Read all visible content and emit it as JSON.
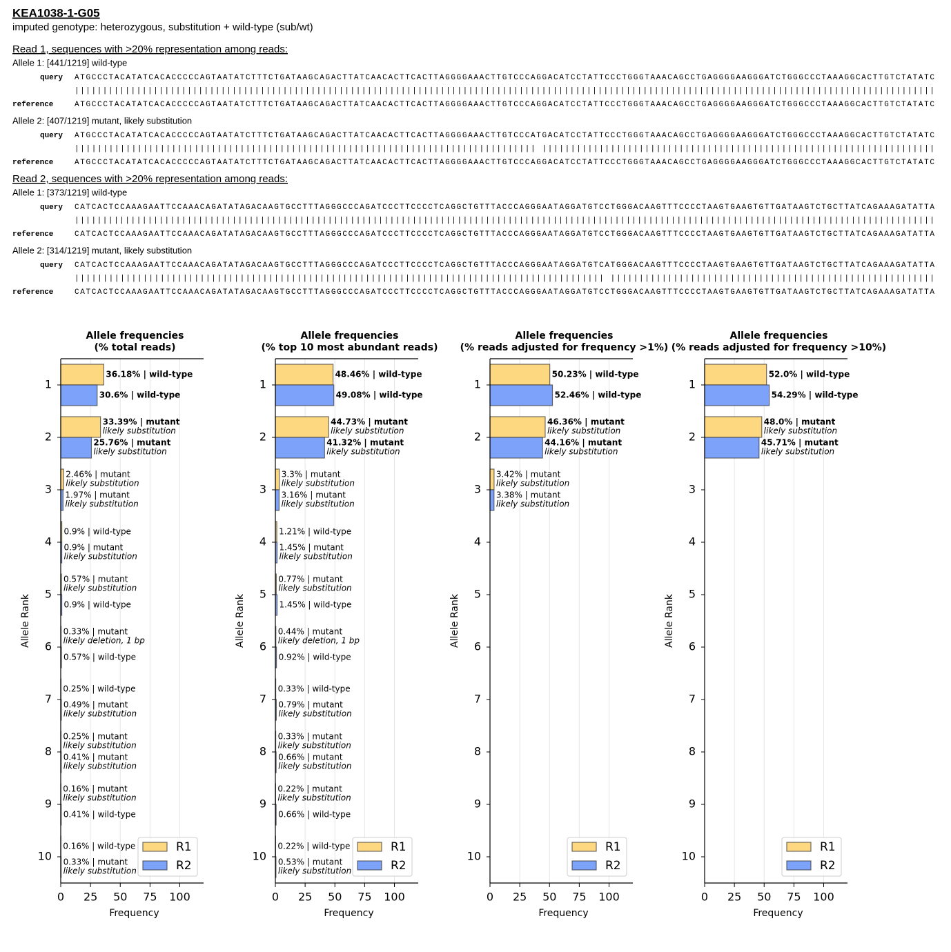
{
  "header": {
    "title": "KEA1038-1-G05",
    "subtitle": "imputed genotype: heterozygous, substitution + wild-type (sub/wt)"
  },
  "reads": [
    {
      "heading": "Read 1, sequences with >20% representation among reads:",
      "alleles": [
        {
          "label": "Allele 1: [441/1219] wild-type",
          "query_label": "query",
          "query": "ATGCCCTACATATCACACCCCCAGTAATATCTTTCTGATAAGCAGACTTATCAACACTTCACTTAGGGGAAACTTGTCCCAGGACATCCTATTCCCTGGGTAAACAGCCTGAGGGGAAGGGATCTGGGCCCTAAAGGCACTTGTCTATATC",
          "match": "|||||||||||||||||||||||||||||||||||||||||||||||||||||||||||||||||||||||||||||||||||||||||||||||||||||||||||||||||||||||||||||||||||||||||||||||||||||||||",
          "reference_label": "reference",
          "reference": "ATGCCCTACATATCACACCCCCAGTAATATCTTTCTGATAAGCAGACTTATCAACACTTCACTTAGGGGAAACTTGTCCCAGGACATCCTATTCCCTGGGTAAACAGCCTGAGGGGAAGGGATCTGGGCCCTAAAGGCACTTGTCTATATC"
        },
        {
          "label": "Allele 2: [407/1219] mutant, likely substitution",
          "query_label": "query",
          "query": "ATGCCCTACATATCACACCCCCAGTAATATCTTTCTGATAAGCAGACTTATCAACACTTCACTTAGGGGAAACTTGTCCCATGACATCCTATTCCCTGGGTAAACAGCCTGAGGGGAAGGGATCTGGGCCCTAAAGGCACTTGTCTATATC",
          "match": "||||||||||||||||||||||||||||||||||||||||||||||||||||||||||||||||||||||||||||||||| |||||||||||||||||||||||||||||||||||||||||||||||||||||||||||||||||||||",
          "reference_label": "reference",
          "reference": "ATGCCCTACATATCACACCCCCAGTAATATCTTTCTGATAAGCAGACTTATCAACACTTCACTTAGGGGAAACTTGTCCCAGGACATCCTATTCCCTGGGTAAACAGCCTGAGGGGAAGGGATCTGGGCCCTAAAGGCACTTGTCTATATC"
        }
      ]
    },
    {
      "heading": "Read 2, sequences with >20% representation among reads:",
      "alleles": [
        {
          "label": "Allele 1: [373/1219] wild-type",
          "query_label": "query",
          "query": "CATCACTCCAAAGAATTCCAAACAGATATAGACAAGTGCCTTTAGGGCCCAGATCCCTTCCCCTCAGGCTGTTTACCCAGGGAATAGGATGTCCTGGGACAAGTTTCCCCTAAGTGAAGTGTTGATAAGTCTGCTTATCAGAAAGATATTA",
          "match": "|||||||||||||||||||||||||||||||||||||||||||||||||||||||||||||||||||||||||||||||||||||||||||||||||||||||||||||||||||||||||||||||||||||||||||||||||||||||||",
          "reference_label": "reference",
          "reference": "CATCACTCCAAAGAATTCCAAACAGATATAGACAAGTGCCTTTAGGGCCCAGATCCCTTCCCCTCAGGCTGTTTACCCAGGGAATAGGATGTCCTGGGACAAGTTTCCCCTAAGTGAAGTGTTGATAAGTCTGCTTATCAGAAAGATATTA"
        },
        {
          "label": "Allele 2: [314/1219] mutant, likely substitution",
          "query_label": "query",
          "query": "CATCACTCCAAAGAATTCCAAACAGATATAGACAAGTGCCTTTAGGGCCCAGATCCCTTCCCCTCAGGCTGTTTACCCAGGGAATAGGATGTCATGGGACAAGTTTCCCCTAAGTGAAGTGTTGATAAGTCTGCTTATCAGAAAGATATTA",
          "match": "||||||||||||||||||||||||||||||||||||||||||||||||||||||||||||||||||||||||||||||||||||||||||||| |||||||||||||||||||||||||||||||||||||||||||||||||||||||||",
          "reference_label": "reference",
          "reference": "CATCACTCCAAAGAATTCCAAACAGATATAGACAAGTGCCTTTAGGGCCCAGATCCCTTCCCCTCAGGCTGTTTACCCAGGGAATAGGATGTCCTGGGACAAGTTTCCCCTAAGTGAAGTGTTGATAAGTCTGCTTATCAGAAAGATATTA"
        }
      ]
    }
  ],
  "chart_data": [
    {
      "type": "bar",
      "orientation": "horizontal",
      "title": "Allele frequencies",
      "subtitle": "(% total reads)",
      "categories": [
        1,
        2,
        3,
        4,
        5,
        6,
        7,
        8,
        9,
        10
      ],
      "series": [
        {
          "name": "R1",
          "color": "#fdd881",
          "values": [
            36.18,
            33.39,
            2.46,
            0.9,
            0.57,
            0.33,
            0.25,
            0.25,
            0.16,
            0.16
          ],
          "value_labels": [
            "36.18% | wild-type",
            "33.39% | mutant",
            "2.46% | mutant",
            "0.9% | wild-type",
            "0.57% | mutant",
            "0.33% | mutant",
            "0.25% | wild-type",
            "0.25% | mutant",
            "0.16% | mutant",
            "0.16% | wild-type"
          ],
          "value_notes": [
            null,
            "likely substitution",
            "likely substitution",
            null,
            "likely substitution",
            "likely deletion, 1 bp",
            null,
            "likely substitution",
            "likely substitution",
            null
          ]
        },
        {
          "name": "R2",
          "color": "#7da2f9",
          "values": [
            30.6,
            25.76,
            1.97,
            0.9,
            0.9,
            0.57,
            0.49,
            0.41,
            0.41,
            0.33
          ],
          "value_labels": [
            "30.6% | wild-type",
            "25.76% | mutant",
            "1.97% | mutant",
            "0.9% | mutant",
            "0.9% | wild-type",
            "0.57% | wild-type",
            "0.49% | mutant",
            "0.41% | mutant",
            "0.41% | wild-type",
            "0.33% | mutant"
          ],
          "value_notes": [
            null,
            "likely substitution",
            "likely substitution",
            "likely substitution",
            null,
            null,
            "likely substitution",
            "likely substitution",
            null,
            "likely substitution"
          ]
        }
      ],
      "xlim": [
        0,
        120
      ],
      "xticks": [
        0,
        25,
        50,
        75,
        100
      ],
      "xlabel": "Frequency",
      "ylabel": "Allele Rank",
      "grid": true,
      "legend": "lower right"
    },
    {
      "type": "bar",
      "orientation": "horizontal",
      "title": "Allele frequencies",
      "subtitle": "(% top 10 most abundant reads)",
      "categories": [
        1,
        2,
        3,
        4,
        5,
        6,
        7,
        8,
        9,
        10
      ],
      "series": [
        {
          "name": "R1",
          "color": "#fdd881",
          "values": [
            48.46,
            44.73,
            3.3,
            1.21,
            0.77,
            0.44,
            0.33,
            0.33,
            0.22,
            0.22
          ],
          "value_labels": [
            "48.46% | wild-type",
            "44.73% | mutant",
            "3.3% | mutant",
            "1.21% | wild-type",
            "0.77% | mutant",
            "0.44% | mutant",
            "0.33% | wild-type",
            "0.33% | mutant",
            "0.22% | mutant",
            "0.22% | wild-type"
          ],
          "value_notes": [
            null,
            "likely substitution",
            "likely substitution",
            null,
            "likely substitution",
            "likely deletion, 1 bp",
            null,
            "likely substitution",
            "likely substitution",
            null
          ]
        },
        {
          "name": "R2",
          "color": "#7da2f9",
          "values": [
            49.08,
            41.32,
            3.16,
            1.45,
            1.45,
            0.92,
            0.79,
            0.66,
            0.66,
            0.53
          ],
          "value_labels": [
            "49.08% | wild-type",
            "41.32% | mutant",
            "3.16% | mutant",
            "1.45% | mutant",
            "1.45% | wild-type",
            "0.92% | wild-type",
            "0.79% | mutant",
            "0.66% | mutant",
            "0.66% | wild-type",
            "0.53% | mutant"
          ],
          "value_notes": [
            null,
            "likely substitution",
            "likely substitution",
            "likely substitution",
            null,
            null,
            "likely substitution",
            "likely substitution",
            null,
            "likely substitution"
          ]
        }
      ],
      "xlim": [
        0,
        120
      ],
      "xticks": [
        0,
        25,
        50,
        75,
        100
      ],
      "xlabel": "Frequency",
      "ylabel": "Allele Rank",
      "grid": true,
      "legend": "lower right"
    },
    {
      "type": "bar",
      "orientation": "horizontal",
      "title": "Allele frequencies",
      "subtitle": "(% reads adjusted for frequency >1%)",
      "categories": [
        1,
        2,
        3,
        4,
        5,
        6,
        7,
        8,
        9,
        10
      ],
      "series": [
        {
          "name": "R1",
          "color": "#fdd881",
          "values": [
            50.23,
            46.36,
            3.42,
            null,
            null,
            null,
            null,
            null,
            null,
            null
          ],
          "value_labels": [
            "50.23% | wild-type",
            "46.36% | mutant",
            "3.42% | mutant",
            null,
            null,
            null,
            null,
            null,
            null,
            null
          ],
          "value_notes": [
            null,
            "likely substitution",
            "likely substitution",
            null,
            null,
            null,
            null,
            null,
            null,
            null
          ]
        },
        {
          "name": "R2",
          "color": "#7da2f9",
          "values": [
            52.46,
            44.16,
            3.38,
            null,
            null,
            null,
            null,
            null,
            null,
            null
          ],
          "value_labels": [
            "52.46% | wild-type",
            "44.16% | mutant",
            "3.38% | mutant",
            null,
            null,
            null,
            null,
            null,
            null,
            null
          ],
          "value_notes": [
            null,
            "likely substitution",
            "likely substitution",
            null,
            null,
            null,
            null,
            null,
            null,
            null
          ]
        }
      ],
      "xlim": [
        0,
        120
      ],
      "xticks": [
        0,
        25,
        50,
        75,
        100
      ],
      "xlabel": "Frequency",
      "ylabel": "Allele Rank",
      "grid": true,
      "legend": "lower right"
    },
    {
      "type": "bar",
      "orientation": "horizontal",
      "title": "Allele frequencies",
      "subtitle": "(% reads adjusted for frequency >10%)",
      "categories": [
        1,
        2,
        3,
        4,
        5,
        6,
        7,
        8,
        9,
        10
      ],
      "series": [
        {
          "name": "R1",
          "color": "#fdd881",
          "values": [
            52,
            48,
            null,
            null,
            null,
            null,
            null,
            null,
            null,
            null
          ],
          "value_labels": [
            "52.0% | wild-type",
            "48.0% | mutant",
            null,
            null,
            null,
            null,
            null,
            null,
            null,
            null
          ],
          "value_notes": [
            null,
            "likely substitution",
            null,
            null,
            null,
            null,
            null,
            null,
            null,
            null
          ]
        },
        {
          "name": "R2",
          "color": "#7da2f9",
          "values": [
            54.29,
            45.71,
            null,
            null,
            null,
            null,
            null,
            null,
            null,
            null
          ],
          "value_labels": [
            "54.29% | wild-type",
            "45.71% | mutant",
            null,
            null,
            null,
            null,
            null,
            null,
            null,
            null
          ],
          "value_notes": [
            null,
            "likely substitution",
            null,
            null,
            null,
            null,
            null,
            null,
            null,
            null
          ]
        }
      ],
      "xlim": [
        0,
        120
      ],
      "xticks": [
        0,
        25,
        50,
        75,
        100
      ],
      "xlabel": "Frequency",
      "ylabel": "Allele Rank",
      "grid": true,
      "legend": "lower right"
    }
  ]
}
